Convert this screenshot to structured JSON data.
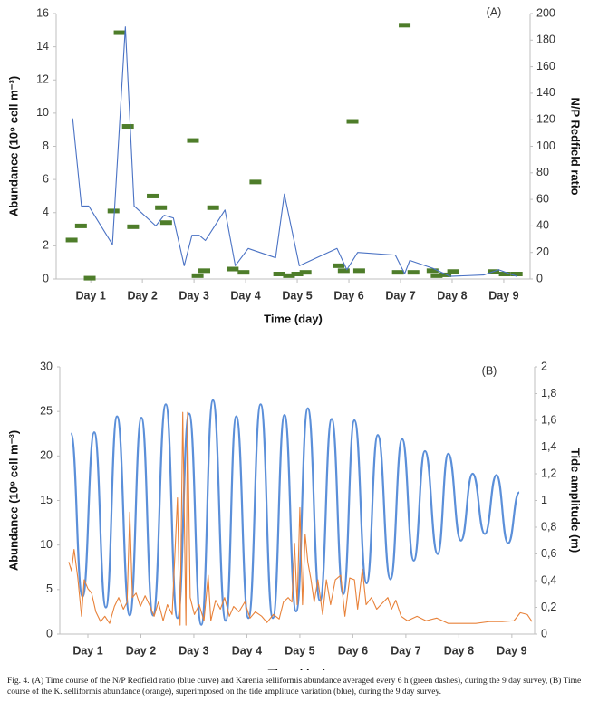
{
  "chart_data": [
    {
      "type": "line",
      "panel_label": "(A)",
      "x_label": "Time (day)",
      "y_label": "Abundance (10⁹ cell m⁻³)",
      "y2_label": "N/P Redfield ratio",
      "xlim": [
        0.33,
        9.51
      ],
      "xticks": [
        {
          "value": 1,
          "label": "Day 1"
        },
        {
          "value": 2,
          "label": "Day 2"
        },
        {
          "value": 3,
          "label": "Day 3"
        },
        {
          "value": 4,
          "label": "Day 4"
        },
        {
          "value": 5,
          "label": "Day 5"
        },
        {
          "value": 6,
          "label": "Day 6"
        },
        {
          "value": 7,
          "label": "Day 7"
        },
        {
          "value": 8,
          "label": "Day 8"
        },
        {
          "value": 9,
          "label": "Day 9"
        }
      ],
      "ylim": [
        0,
        16
      ],
      "yticks": [
        0,
        2,
        4,
        6,
        8,
        10,
        12,
        14,
        16
      ],
      "y2lim": [
        0,
        200
      ],
      "y2ticks": [
        0,
        20,
        40,
        60,
        80,
        100,
        120,
        140,
        160,
        180,
        200
      ],
      "series": [
        {
          "type": "scatter",
          "marker": "dash",
          "color": "#4e7d2a",
          "x": [
            0.63,
            0.81,
            0.98,
            1.44,
            1.56,
            1.72,
            1.82,
            2.2,
            2.36,
            2.46,
            2.98,
            3.07,
            3.2,
            3.37,
            3.75,
            3.96,
            4.19,
            4.65,
            4.84,
            5.0,
            5.16,
            5.8,
            5.9,
            6.07,
            6.2,
            6.95,
            7.08,
            7.25,
            7.62,
            7.7,
            7.87,
            8.02,
            8.8,
            9.02,
            9.25
          ],
          "values": [
            2.35,
            3.2,
            0.05,
            4.1,
            14.85,
            9.2,
            3.15,
            5.0,
            4.3,
            3.4,
            8.35,
            0.2,
            0.5,
            4.3,
            0.6,
            0.4,
            5.85,
            0.3,
            0.2,
            0.3,
            0.4,
            0.8,
            0.5,
            9.5,
            0.5,
            0.4,
            15.3,
            0.4,
            0.5,
            0.2,
            0.25,
            0.45,
            0.45,
            0.3,
            0.3
          ]
        },
        {
          "type": "line",
          "axis": "y2",
          "color": "#4a72c4",
          "x": [
            0.65,
            0.82,
            0.96,
            1.42,
            1.67,
            1.84,
            2.26,
            2.42,
            2.6,
            2.81,
            2.96,
            3.1,
            3.22,
            3.6,
            3.8,
            4.05,
            4.58,
            4.75,
            5.04,
            5.77,
            5.96,
            6.17,
            6.9,
            7.08,
            7.18,
            7.63,
            7.96,
            8.61,
            8.9,
            9.25
          ],
          "values": [
            121,
            55,
            55,
            26,
            190,
            55,
            40,
            48,
            46,
            10,
            33,
            33,
            29,
            52,
            10,
            23,
            16,
            64,
            10,
            23,
            7,
            20,
            18,
            4,
            14,
            8,
            2,
            3,
            7,
            2
          ]
        }
      ]
    },
    {
      "type": "line",
      "panel_label": "(B)",
      "x_label": "Time (day)",
      "y_label": "Abundance (10⁹ cell m⁻³)",
      "y2_label": "Tide amplitude (m)",
      "xlim": [
        0.47,
        9.43
      ],
      "xticks": [
        {
          "value": 1,
          "label": "Day 1"
        },
        {
          "value": 2,
          "label": "Day 2"
        },
        {
          "value": 3,
          "label": "Day 3"
        },
        {
          "value": 4,
          "label": "Day 4"
        },
        {
          "value": 5,
          "label": "Day 5"
        },
        {
          "value": 6,
          "label": "Day 6"
        },
        {
          "value": 7,
          "label": "Day 7"
        },
        {
          "value": 8,
          "label": "Day 8"
        },
        {
          "value": 9,
          "label": "Day 9"
        }
      ],
      "ylim": [
        0,
        30
      ],
      "yticks": [
        0,
        5,
        10,
        15,
        20,
        25,
        30
      ],
      "y2lim": [
        0,
        2
      ],
      "y2ticks": [
        0,
        {
          "value": 0.2,
          "label": "0,2"
        },
        {
          "value": 0.4,
          "label": "0,4"
        },
        {
          "value": 0.6,
          "label": "0,6"
        },
        {
          "value": 0.8,
          "label": "0,8"
        },
        1,
        {
          "value": 1.2,
          "label": "1,2"
        },
        {
          "value": 1.4,
          "label": "1,4"
        },
        {
          "value": 1.6,
          "label": "1,6"
        },
        {
          "value": 1.8,
          "label": "1,8"
        },
        2
      ],
      "series": [
        {
          "type": "line",
          "smooth": true,
          "axis": "y2",
          "color": "#5b8fd9",
          "x": [
            0.68,
            0.9,
            1.12,
            1.34,
            1.55,
            1.79,
            2.01,
            2.23,
            2.47,
            2.69,
            2.91,
            3.14,
            3.36,
            3.6,
            3.8,
            4.03,
            4.26,
            4.49,
            4.71,
            4.93,
            5.15,
            5.38,
            5.6,
            5.82,
            6.03,
            6.26,
            6.47,
            6.71,
            6.93,
            7.15,
            7.36,
            7.6,
            7.8,
            8.04,
            8.26,
            8.49,
            8.71,
            8.93,
            9.14
          ],
          "values": [
            1.5,
            0.28,
            1.51,
            0.2,
            1.63,
            0.14,
            1.62,
            0.14,
            1.72,
            0.12,
            1.65,
            0.07,
            1.75,
            0.1,
            1.63,
            0.12,
            1.72,
            0.12,
            1.64,
            0.17,
            1.69,
            0.25,
            1.61,
            0.3,
            1.6,
            0.38,
            1.49,
            0.41,
            1.46,
            0.55,
            1.37,
            0.6,
            1.35,
            0.7,
            1.2,
            0.75,
            1.19,
            0.68,
            1.06
          ]
        },
        {
          "type": "line",
          "color": "#e8823a",
          "x": [
            0.64,
            0.69,
            0.74,
            0.81,
            0.88,
            0.93,
            1.0,
            1.07,
            1.15,
            1.24,
            1.32,
            1.41,
            1.5,
            1.58,
            1.67,
            1.74,
            1.79,
            1.84,
            1.91,
            1.99,
            2.08,
            2.16,
            2.25,
            2.33,
            2.42,
            2.5,
            2.59,
            2.69,
            2.74,
            2.79,
            2.85,
            2.88,
            2.93,
            3.01,
            3.1,
            3.19,
            3.27,
            3.32,
            3.41,
            3.5,
            3.58,
            3.67,
            3.75,
            3.85,
            3.96,
            4.06,
            4.16,
            4.28,
            4.38,
            4.5,
            4.61,
            4.69,
            4.78,
            4.85,
            4.9,
            4.95,
            5.0,
            5.05,
            5.1,
            5.15,
            5.21,
            5.27,
            5.34,
            5.43,
            5.5,
            5.58,
            5.67,
            5.77,
            5.85,
            5.94,
            6.03,
            6.09,
            6.18,
            6.25,
            6.35,
            6.45,
            6.56,
            6.66,
            6.73,
            6.81,
            6.91,
            7.03,
            7.21,
            7.38,
            7.58,
            7.8,
            8.06,
            8.32,
            8.57,
            8.82,
            9.04,
            9.16,
            9.29,
            9.38
          ],
          "values": [
            8.1,
            7.1,
            9.5,
            6.3,
            2.0,
            6.1,
            5.1,
            4.6,
            2.5,
            1.4,
            2.0,
            1.2,
            3.1,
            4.1,
            2.8,
            3.6,
            13.7,
            4.1,
            4.6,
            3.1,
            4.3,
            3.3,
            2.0,
            3.6,
            1.5,
            3.3,
            2.2,
            15.3,
            1.0,
            24.9,
            1.0,
            24.9,
            4.1,
            2.2,
            3.3,
            1.5,
            6.6,
            1.5,
            3.8,
            2.8,
            4.1,
            2.0,
            3.1,
            2.5,
            3.6,
            1.8,
            2.5,
            2.0,
            1.3,
            2.2,
            1.7,
            3.6,
            4.1,
            3.6,
            10.2,
            3.3,
            14.2,
            3.3,
            11.2,
            8.1,
            6.1,
            3.6,
            6.1,
            2.2,
            6.1,
            3.3,
            6.1,
            6.6,
            2.0,
            6.3,
            6.1,
            2.8,
            7.3,
            3.3,
            4.1,
            2.8,
            3.5,
            4.1,
            2.8,
            3.8,
            2.0,
            1.5,
            2.0,
            1.5,
            1.8,
            1.2,
            1.2,
            1.2,
            1.4,
            1.4,
            1.5,
            2.4,
            2.2,
            1.4
          ]
        }
      ]
    }
  ],
  "caption": "Fig. 4. (A) Time course of the N/P Redfield ratio (blue curve) and Karenia selliformis abundance averaged every 6 h (green dashes), during the 9 day survey, (B) Time course of the K. selliformis abundance (orange), superimposed on the tide amplitude variation (blue), during the 9 day survey."
}
